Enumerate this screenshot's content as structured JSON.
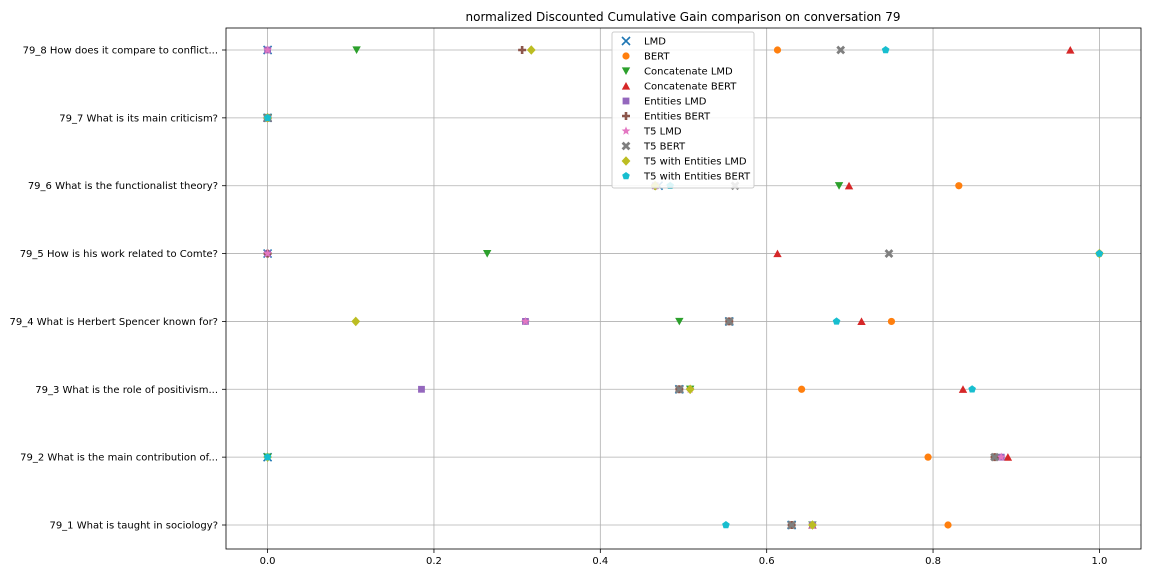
{
  "chart_data": {
    "type": "scatter",
    "title": "normalized Discounted Cumulative Gain comparison on conversation 79",
    "xlabel": "",
    "ylabel": "",
    "xlim": [
      -0.05,
      1.05
    ],
    "xticks": [
      0.0,
      0.2,
      0.4,
      0.6,
      0.8,
      1.0
    ],
    "xtick_labels": [
      "0.0",
      "0.2",
      "0.4",
      "0.6",
      "0.8",
      "1.0"
    ],
    "grid": true,
    "legend_position": "top-center",
    "categories": [
      "79_1 What is taught in sociology?",
      "79_2 What is the main contribution of...",
      "79_3 What is the role of positivism...",
      "79_4 What is Herbert Spencer known for?",
      "79_5 How is his work related to Comte?",
      "79_6 What is the functionalist theory?",
      "79_7 What is its main criticism?",
      "79_8 How does it compare to conflict..."
    ],
    "series": [
      {
        "name": "LMD",
        "marker": "x",
        "color": "#1f77b4",
        "values": [
          0.63,
          0.0,
          0.495,
          0.555,
          0.0,
          0.47,
          0.0,
          0.0
        ]
      },
      {
        "name": "BERT",
        "marker": "circle",
        "color": "#ff7f0e",
        "values": [
          0.818,
          0.794,
          0.642,
          0.75,
          1.0,
          0.831,
          0.0,
          0.613
        ]
      },
      {
        "name": "Concatenate LMD",
        "marker": "triangle-down",
        "color": "#2ca02c",
        "values": [
          0.655,
          0.0,
          0.508,
          0.495,
          0.264,
          0.687,
          0.0,
          0.107
        ]
      },
      {
        "name": "Concatenate BERT",
        "marker": "triangle-up",
        "color": "#d62728",
        "values": [
          0.655,
          0.89,
          0.836,
          0.714,
          0.613,
          0.699,
          0.0,
          0.965
        ]
      },
      {
        "name": "Entities LMD",
        "marker": "square",
        "color": "#9467bd",
        "values": [
          0.655,
          0.882,
          0.185,
          0.31,
          0.0,
          0.466,
          0.0,
          0.0
        ]
      },
      {
        "name": "Entities BERT",
        "marker": "plus",
        "color": "#8c564b",
        "values": [
          0.63,
          0.874,
          0.495,
          0.555,
          0.0,
          0.466,
          0.0,
          0.306
        ]
      },
      {
        "name": "T5 LMD",
        "marker": "star",
        "color": "#e377c2",
        "values": [
          0.655,
          0.882,
          0.508,
          0.31,
          0.0,
          0.466,
          0.0,
          0.0
        ]
      },
      {
        "name": "T5 BERT",
        "marker": "x-thick",
        "color": "#7f7f7f",
        "values": [
          0.63,
          0.874,
          0.495,
          0.555,
          0.747,
          0.562,
          0.0,
          0.689
        ]
      },
      {
        "name": "T5 with Entities LMD",
        "marker": "diamond",
        "color": "#bcbd22",
        "values": [
          0.655,
          0.0,
          0.508,
          0.106,
          1.0,
          0.466,
          0.0,
          0.317
        ]
      },
      {
        "name": "T5 with Entities BERT",
        "marker": "pentagon",
        "color": "#17becf",
        "values": [
          0.551,
          0.0,
          0.847,
          0.684,
          1.0,
          0.484,
          0.0,
          0.743
        ]
      }
    ]
  }
}
